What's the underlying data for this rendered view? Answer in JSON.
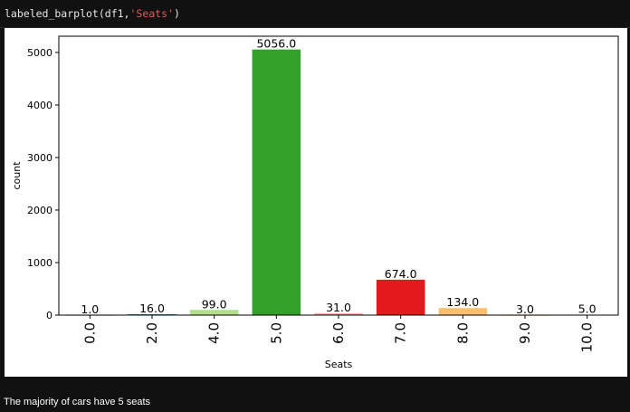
{
  "cell": {
    "code_func": "labeled_barplot(df1,",
    "code_arg": "'Seats'",
    "code_end": ")"
  },
  "markdown_text": "The majority of cars have 5 seats",
  "chart_data": {
    "type": "bar",
    "xlabel": "Seats",
    "ylabel": "count",
    "categories": [
      "0.0",
      "2.0",
      "4.0",
      "5.0",
      "6.0",
      "7.0",
      "8.0",
      "9.0",
      "10.0"
    ],
    "values": [
      1,
      16,
      99,
      5056,
      31,
      674,
      134,
      3,
      5
    ],
    "value_labels": [
      "1.0",
      "16.0",
      "99.0",
      "5056.0",
      "31.0",
      "674.0",
      "134.0",
      "3.0",
      "5.0"
    ],
    "colors": [
      "#a6cee3",
      "#1f78b4",
      "#b2df8a",
      "#33a02c",
      "#fb9a99",
      "#e31a1c",
      "#fdbf6f",
      "#ff7f00",
      "#cab2d6"
    ],
    "yticks": [
      0,
      1000,
      2000,
      3000,
      4000,
      5000
    ],
    "ylim": [
      0,
      5309
    ],
    "grid": false
  }
}
